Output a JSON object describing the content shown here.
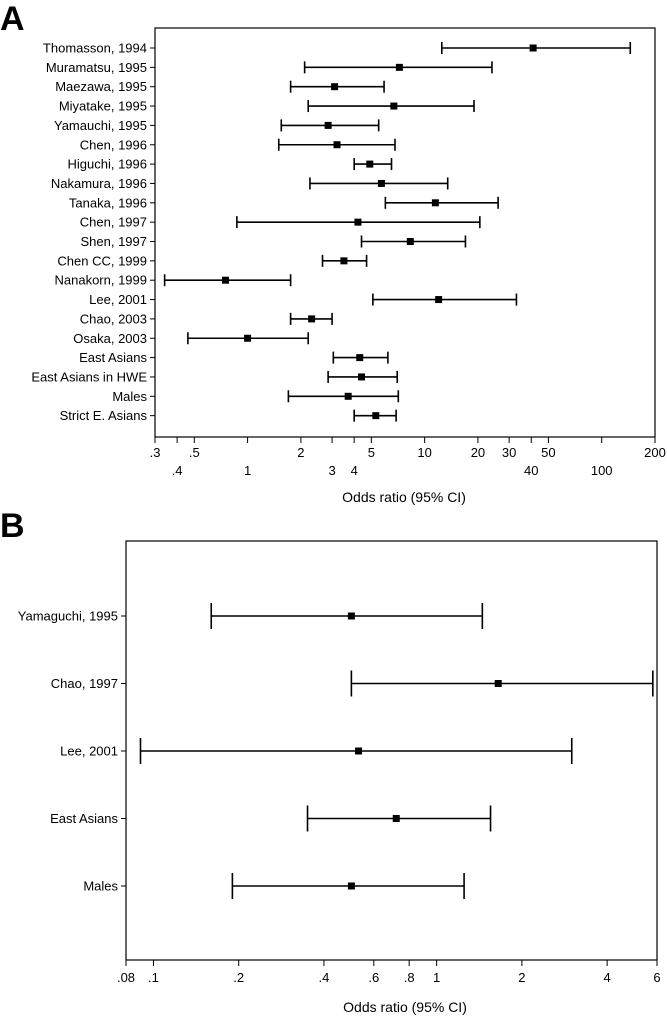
{
  "chart_data": [
    {
      "panel": "A",
      "type": "forest",
      "xlabel": "Odds ratio (95% CI)",
      "xscale": "log",
      "xlim": [
        0.3,
        200
      ],
      "xticks_upper": [
        ".3",
        ".5",
        "2",
        "5",
        "10",
        "20",
        "30",
        "50",
        "200"
      ],
      "xticks_lower": [
        ".4",
        "1",
        "3",
        "4",
        "40",
        "100"
      ],
      "xtick_values_upper": [
        0.3,
        0.5,
        2,
        5,
        10,
        20,
        30,
        50,
        200
      ],
      "xtick_values_lower": [
        0.4,
        1,
        3,
        4,
        40,
        100
      ],
      "grid": false,
      "studies": [
        {
          "label": "Thomasson, 1994",
          "or": 41,
          "lo": 12.5,
          "hi": 145
        },
        {
          "label": "Muramatsu, 1995",
          "or": 7.2,
          "lo": 2.1,
          "hi": 24
        },
        {
          "label": "Maezawa, 1995",
          "or": 3.1,
          "lo": 1.75,
          "hi": 5.9
        },
        {
          "label": "Miyatake, 1995",
          "or": 6.7,
          "lo": 2.2,
          "hi": 19
        },
        {
          "label": "Yamauchi, 1995",
          "or": 2.85,
          "lo": 1.55,
          "hi": 5.5
        },
        {
          "label": "Chen, 1996",
          "or": 3.2,
          "lo": 1.5,
          "hi": 6.8
        },
        {
          "label": "Higuchi, 1996",
          "or": 4.9,
          "lo": 4.0,
          "hi": 6.5
        },
        {
          "label": "Nakamura, 1996",
          "or": 5.7,
          "lo": 2.25,
          "hi": 13.5
        },
        {
          "label": "Tanaka, 1996",
          "or": 11.5,
          "lo": 6.0,
          "hi": 26
        },
        {
          "label": "Chen, 1997",
          "or": 4.2,
          "lo": 0.87,
          "hi": 20.5
        },
        {
          "label": "Shen, 1997",
          "or": 8.3,
          "lo": 4.4,
          "hi": 17
        },
        {
          "label": "Chen CC, 1999",
          "or": 3.5,
          "lo": 2.65,
          "hi": 4.7
        },
        {
          "label": "Nanakorn, 1999",
          "or": 0.75,
          "lo": 0.34,
          "hi": 1.75
        },
        {
          "label": "Lee, 2001",
          "or": 12,
          "lo": 5.1,
          "hi": 33
        },
        {
          "label": "Chao, 2003",
          "or": 2.3,
          "lo": 1.75,
          "hi": 3.0
        },
        {
          "label": "Osaka, 2003",
          "or": 1.0,
          "lo": 0.46,
          "hi": 2.2
        },
        {
          "label": "East Asians",
          "or": 4.3,
          "lo": 3.05,
          "hi": 6.2
        },
        {
          "label": "East Asians in HWE",
          "or": 4.4,
          "lo": 2.85,
          "hi": 7.0
        },
        {
          "label": "Males",
          "or": 3.7,
          "lo": 1.7,
          "hi": 7.1
        },
        {
          "label": "Strict E. Asians",
          "or": 5.3,
          "lo": 4.0,
          "hi": 6.9
        }
      ]
    },
    {
      "panel": "B",
      "type": "forest",
      "xlabel": "Odds ratio (95% CI)",
      "xscale": "log",
      "xlim": [
        0.08,
        6
      ],
      "xticks": [
        ".08",
        ".1",
        ".2",
        ".4",
        ".6",
        ".8",
        "1",
        "2",
        "4",
        "6"
      ],
      "xtick_values": [
        0.08,
        0.1,
        0.2,
        0.4,
        0.6,
        0.8,
        1,
        2,
        4,
        6
      ],
      "grid": false,
      "studies": [
        {
          "label": "Yamaguchi, 1995",
          "or": 0.5,
          "lo": 0.16,
          "hi": 1.45
        },
        {
          "label": "Chao, 1997",
          "or": 1.65,
          "lo": 0.5,
          "hi": 5.8
        },
        {
          "label": "Lee, 2001",
          "or": 0.53,
          "lo": 0.09,
          "hi": 3.0
        },
        {
          "label": "East Asians",
          "or": 0.72,
          "lo": 0.35,
          "hi": 1.55
        },
        {
          "label": "Males",
          "or": 0.5,
          "lo": 0.19,
          "hi": 1.25
        }
      ]
    }
  ]
}
